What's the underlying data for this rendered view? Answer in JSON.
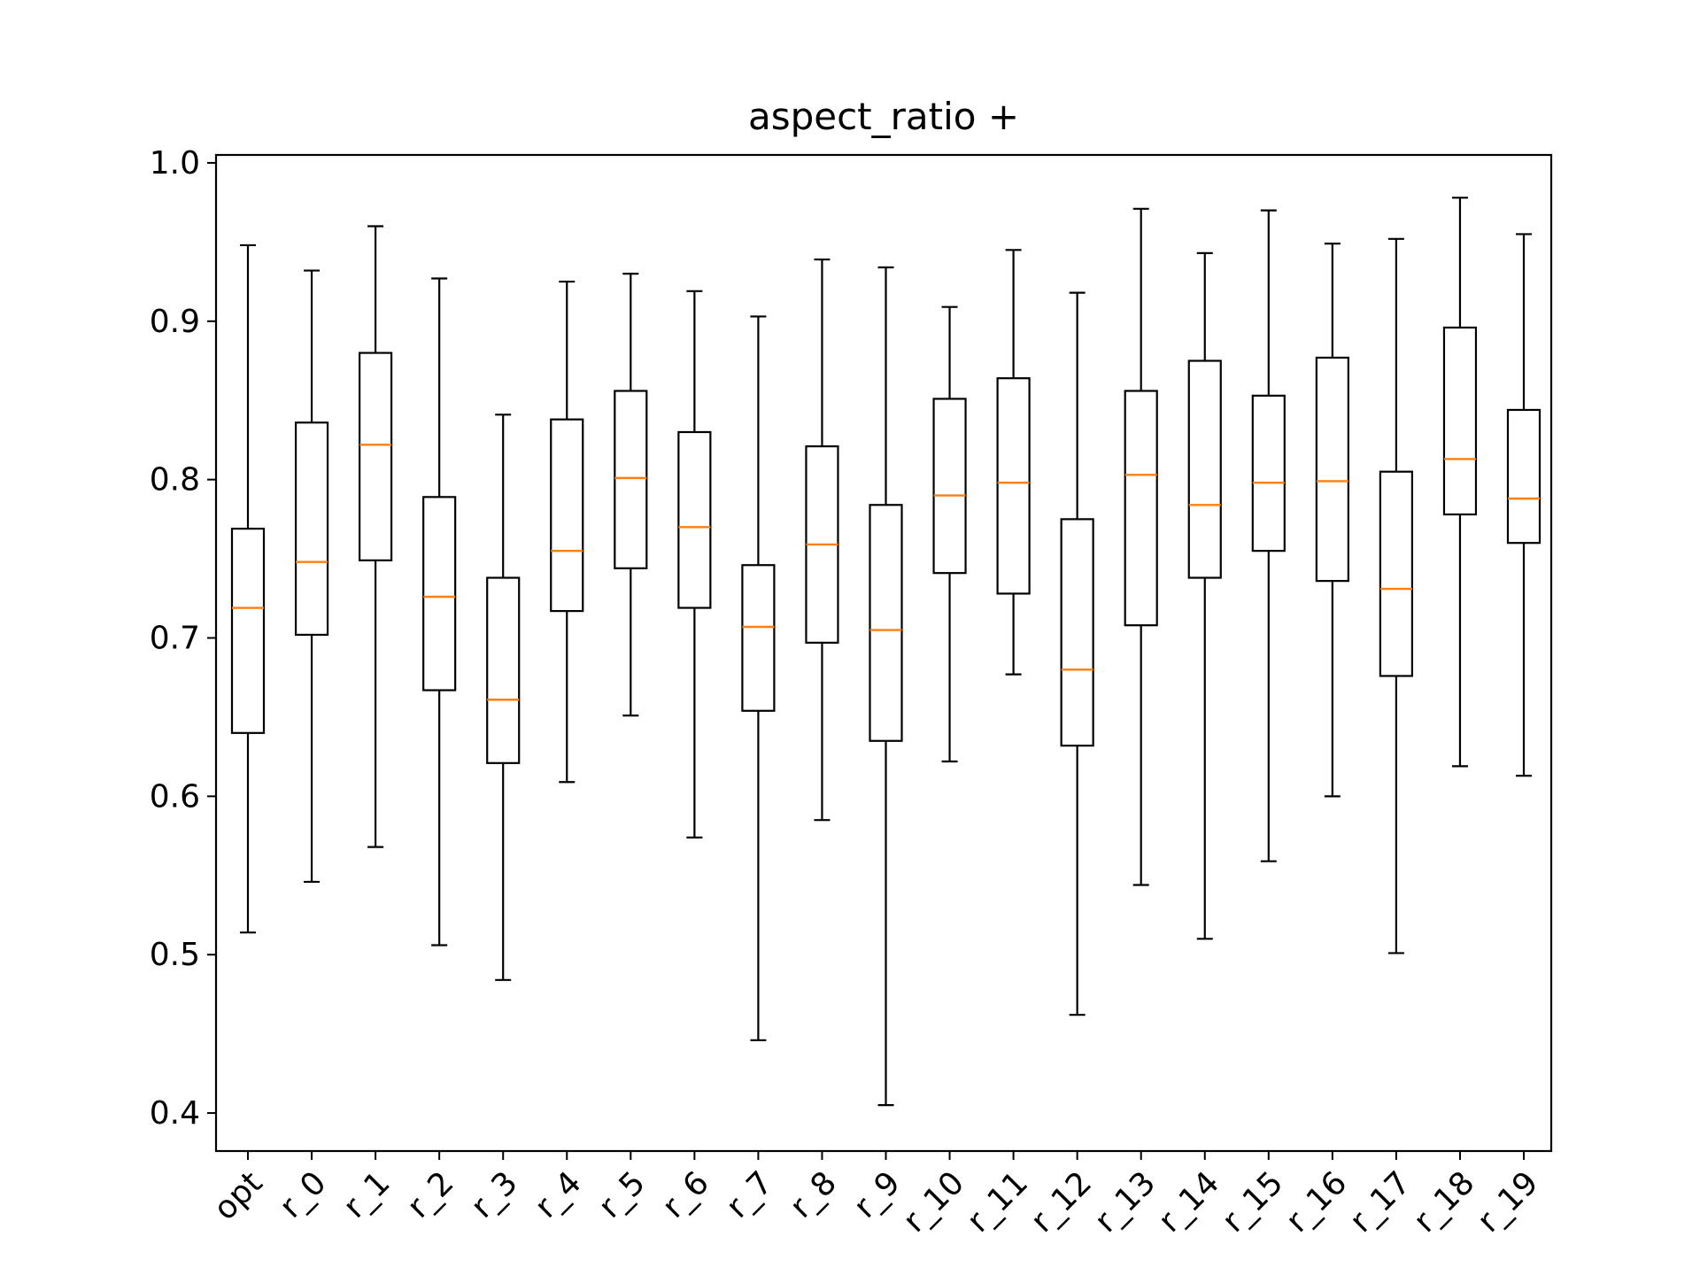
{
  "chart_data": {
    "type": "boxplot",
    "title": "aspect_ratio +",
    "xlabel": "",
    "ylabel": "",
    "ylim": [
      0.376,
      1.005
    ],
    "yticks": [
      0.4,
      0.5,
      0.6,
      0.7,
      0.8,
      0.9,
      1.0
    ],
    "ytick_labels": [
      "0.4",
      "0.5",
      "0.6",
      "0.7",
      "0.8",
      "0.9",
      "1.0"
    ],
    "grid": false,
    "colors": {
      "box": "#000000",
      "median": "#ff7f0e"
    },
    "categories": [
      "opt",
      "r_0",
      "r_1",
      "r_2",
      "r_3",
      "r_4",
      "r_5",
      "r_6",
      "r_7",
      "r_8",
      "r_9",
      "r_10",
      "r_11",
      "r_12",
      "r_13",
      "r_14",
      "r_15",
      "r_16",
      "r_17",
      "r_18",
      "r_19"
    ],
    "boxes": [
      {
        "whislo": 0.514,
        "q1": 0.64,
        "med": 0.719,
        "q3": 0.769,
        "whishi": 0.948
      },
      {
        "whislo": 0.546,
        "q1": 0.702,
        "med": 0.748,
        "q3": 0.836,
        "whishi": 0.932
      },
      {
        "whislo": 0.568,
        "q1": 0.749,
        "med": 0.822,
        "q3": 0.88,
        "whishi": 0.96
      },
      {
        "whislo": 0.506,
        "q1": 0.667,
        "med": 0.726,
        "q3": 0.789,
        "whishi": 0.927
      },
      {
        "whislo": 0.484,
        "q1": 0.621,
        "med": 0.661,
        "q3": 0.738,
        "whishi": 0.841
      },
      {
        "whislo": 0.609,
        "q1": 0.717,
        "med": 0.755,
        "q3": 0.838,
        "whishi": 0.925
      },
      {
        "whislo": 0.651,
        "q1": 0.744,
        "med": 0.801,
        "q3": 0.856,
        "whishi": 0.93
      },
      {
        "whislo": 0.574,
        "q1": 0.719,
        "med": 0.77,
        "q3": 0.83,
        "whishi": 0.919
      },
      {
        "whislo": 0.446,
        "q1": 0.654,
        "med": 0.707,
        "q3": 0.746,
        "whishi": 0.903
      },
      {
        "whislo": 0.585,
        "q1": 0.697,
        "med": 0.759,
        "q3": 0.821,
        "whishi": 0.939
      },
      {
        "whislo": 0.405,
        "q1": 0.635,
        "med": 0.705,
        "q3": 0.784,
        "whishi": 0.934
      },
      {
        "whislo": 0.622,
        "q1": 0.741,
        "med": 0.79,
        "q3": 0.851,
        "whishi": 0.909
      },
      {
        "whislo": 0.677,
        "q1": 0.728,
        "med": 0.798,
        "q3": 0.864,
        "whishi": 0.945
      },
      {
        "whislo": 0.462,
        "q1": 0.632,
        "med": 0.68,
        "q3": 0.775,
        "whishi": 0.918
      },
      {
        "whislo": 0.544,
        "q1": 0.708,
        "med": 0.803,
        "q3": 0.856,
        "whishi": 0.971
      },
      {
        "whislo": 0.51,
        "q1": 0.738,
        "med": 0.784,
        "q3": 0.875,
        "whishi": 0.943
      },
      {
        "whislo": 0.559,
        "q1": 0.755,
        "med": 0.798,
        "q3": 0.853,
        "whishi": 0.97
      },
      {
        "whislo": 0.6,
        "q1": 0.736,
        "med": 0.799,
        "q3": 0.877,
        "whishi": 0.949
      },
      {
        "whislo": 0.501,
        "q1": 0.676,
        "med": 0.731,
        "q3": 0.805,
        "whishi": 0.952
      },
      {
        "whislo": 0.619,
        "q1": 0.778,
        "med": 0.813,
        "q3": 0.896,
        "whishi": 0.978
      },
      {
        "whislo": 0.613,
        "q1": 0.76,
        "med": 0.788,
        "q3": 0.844,
        "whishi": 0.955
      }
    ]
  }
}
